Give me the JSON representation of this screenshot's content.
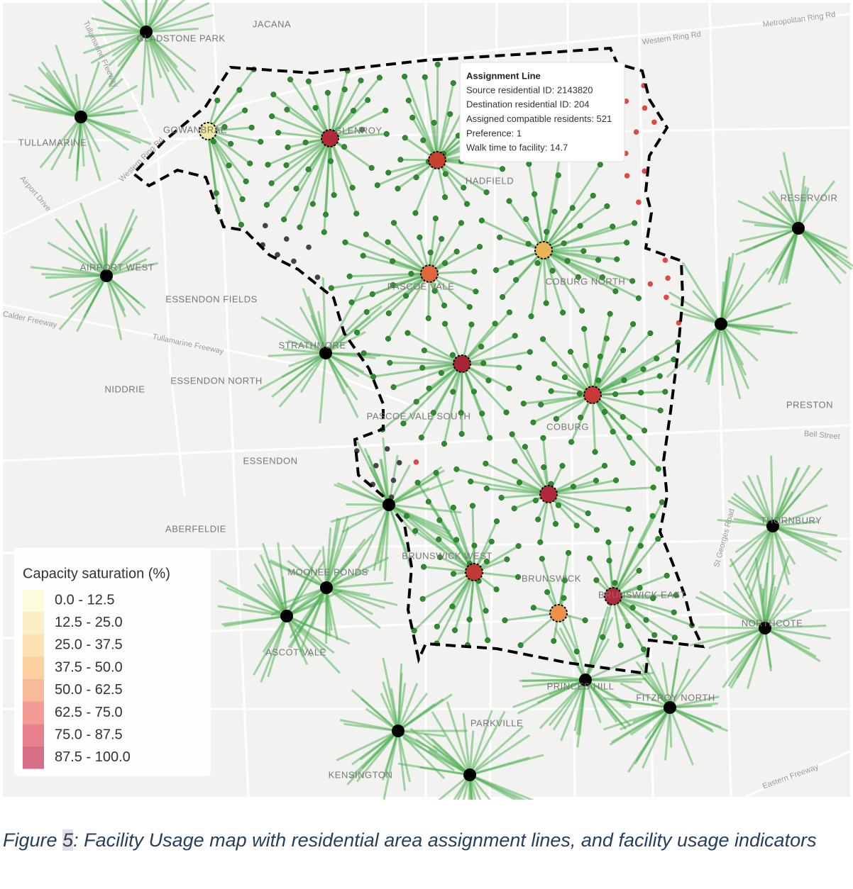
{
  "map": {
    "place_labels": [
      "JACANA",
      "GLADSTONE PARK",
      "GOWANBRAE",
      "TULLAMARINE",
      "GLENROY",
      "HADFIELD",
      "RESERVOIR",
      "AIRPORT WEST",
      "ESSENDON FIELDS",
      "PASCOE VALE",
      "COBURG NORTH",
      "STRATHMORE",
      "ESSENDON NORTH",
      "NIDDRIE",
      "PASCOE VALE SOUTH",
      "COBURG",
      "PRESTON",
      "ESSENDON",
      "ABERFELDIE",
      "THORNBURY",
      "MOONEE PONDS",
      "BRUNSWICK WEST",
      "BRUNSWICK",
      "BRUNSWICK EAST",
      "ASCOT VALE",
      "NORTHCOTE",
      "PRINCES HILL",
      "FITZROY NORTH",
      "PARKVILLE",
      "KENSINGTON"
    ],
    "road_labels": [
      "Western Ring Rd",
      "Metropolitan Ring Rd",
      "Tullamarine Freeway",
      "Western Ring Rd",
      "Airport Drive",
      "Calder Freeway",
      "Tullamarine Freeway",
      "Bell Street",
      "St Georges Road",
      "Eastern Freeway"
    ]
  },
  "tooltip": {
    "title": "Assignment Line",
    "lines": [
      "Source residential ID: 2143820",
      "Destination residential ID: 204",
      "Assigned compatible residents: 521",
      "Preference: 1",
      "Walk time to facility: 14.7"
    ]
  },
  "legend": {
    "title": "Capacity saturation (%)",
    "items": [
      {
        "label": "0.0 - 12.5",
        "color": "#fcfbdc"
      },
      {
        "label": "12.5 - 25.0",
        "color": "#fbf0c4"
      },
      {
        "label": "25.0 - 37.5",
        "color": "#fbe2b0"
      },
      {
        "label": "37.5 - 50.0",
        "color": "#fbd09e"
      },
      {
        "label": "50.0 - 62.5",
        "color": "#f9ba9a"
      },
      {
        "label": "62.5 - 75.0",
        "color": "#f39c95"
      },
      {
        "label": "75.0 - 87.5",
        "color": "#e5808c"
      },
      {
        "label": "87.5 - 100.0",
        "color": "#d56e86"
      }
    ]
  },
  "caption": {
    "prefix": "Figure ",
    "number": "5",
    "text": ": Facility Usage map with residential area assignment lines, and facility usage indicators"
  }
}
